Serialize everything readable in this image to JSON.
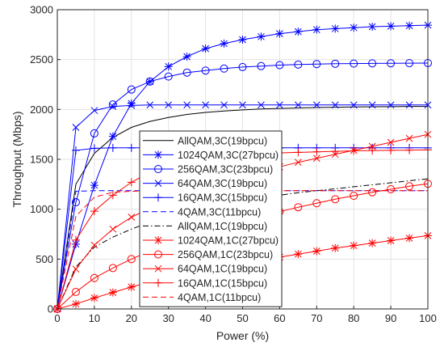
{
  "chart_data": {
    "type": "line",
    "xlabel": "Power (%)",
    "ylabel": "Throughput (Mbps)",
    "xlim": [
      0,
      100
    ],
    "ylim": [
      0,
      3000
    ],
    "xticks": [
      0,
      10,
      20,
      30,
      40,
      50,
      60,
      70,
      80,
      90,
      100
    ],
    "yticks": [
      0,
      500,
      1000,
      1500,
      2000,
      2500,
      3000
    ],
    "grid": true,
    "legend_position": "center",
    "series": [
      {
        "name": "AllQAM,3C(19bpcu)",
        "color": "#000000",
        "dash": "solid",
        "marker": "none",
        "x": [
          0,
          5,
          10,
          15,
          20,
          25,
          30,
          35,
          40,
          45,
          50,
          55,
          60,
          65,
          70,
          75,
          80,
          85,
          90,
          95,
          100
        ],
        "y": [
          0,
          1250,
          1560,
          1720,
          1820,
          1880,
          1920,
          1950,
          1970,
          1985,
          1995,
          2005,
          2010,
          2015,
          2020,
          2022,
          2025,
          2027,
          2028,
          2030,
          2030
        ]
      },
      {
        "name": "1024QAM,3C(27bpcu)",
        "color": "#0000ff",
        "dash": "solid",
        "marker": "star",
        "x": [
          0,
          5,
          10,
          15,
          20,
          25,
          30,
          35,
          40,
          45,
          50,
          55,
          60,
          65,
          70,
          75,
          80,
          85,
          90,
          95,
          100
        ],
        "y": [
          0,
          650,
          1240,
          1730,
          2060,
          2280,
          2430,
          2530,
          2610,
          2660,
          2700,
          2730,
          2760,
          2780,
          2800,
          2810,
          2820,
          2830,
          2835,
          2840,
          2845
        ]
      },
      {
        "name": "256QAM,3C(23bpcu)",
        "color": "#0000ff",
        "dash": "solid",
        "marker": "circle",
        "x": [
          0,
          5,
          10,
          15,
          20,
          25,
          30,
          35,
          40,
          45,
          50,
          55,
          60,
          65,
          70,
          75,
          80,
          85,
          90,
          95,
          100
        ],
        "y": [
          0,
          1070,
          1760,
          2050,
          2200,
          2280,
          2330,
          2370,
          2390,
          2410,
          2425,
          2435,
          2445,
          2450,
          2455,
          2458,
          2460,
          2462,
          2463,
          2464,
          2465
        ]
      },
      {
        "name": "64QAM,3C(19bpcu)",
        "color": "#0000ff",
        "dash": "solid",
        "marker": "x",
        "x": [
          0,
          5,
          10,
          15,
          20,
          25,
          30,
          35,
          40,
          45,
          50,
          55,
          60,
          65,
          70,
          75,
          80,
          85,
          90,
          95,
          100
        ],
        "y": [
          0,
          1820,
          1990,
          2030,
          2040,
          2045,
          2045,
          2045,
          2045,
          2045,
          2045,
          2045,
          2045,
          2045,
          2045,
          2045,
          2045,
          2045,
          2045,
          2045,
          2045
        ]
      },
      {
        "name": "16QAM,3C(15bpcu)",
        "color": "#0000ff",
        "dash": "solid",
        "marker": "plus",
        "x": [
          0,
          5,
          10,
          15,
          20,
          25,
          30,
          35,
          40,
          45,
          50,
          55,
          60,
          65,
          70,
          75,
          80,
          85,
          90,
          95,
          100
        ],
        "y": [
          0,
          1590,
          1610,
          1615,
          1615,
          1615,
          1615,
          1615,
          1615,
          1615,
          1615,
          1615,
          1615,
          1615,
          1615,
          1615,
          1615,
          1615,
          1615,
          1615,
          1615
        ]
      },
      {
        "name": "4QAM,3C(11bpcu)",
        "color": "#0000ff",
        "dash": "dashed",
        "marker": "none",
        "x": [
          0,
          5,
          10,
          15,
          20,
          25,
          30,
          35,
          40,
          45,
          50,
          55,
          60,
          65,
          70,
          75,
          80,
          85,
          90,
          95,
          100
        ],
        "y": [
          0,
          1180,
          1185,
          1185,
          1185,
          1185,
          1185,
          1185,
          1185,
          1185,
          1185,
          1185,
          1185,
          1185,
          1185,
          1185,
          1185,
          1185,
          1185,
          1185,
          1185
        ]
      },
      {
        "name": "AllQAM,1C(19bpcu)",
        "color": "#000000",
        "dash": "dashdot",
        "marker": "none",
        "x": [
          0,
          5,
          10,
          15,
          20,
          25,
          30,
          35,
          40,
          45,
          50,
          55,
          60,
          65,
          70,
          75,
          80,
          85,
          90,
          95,
          100
        ],
        "y": [
          0,
          420,
          620,
          720,
          800,
          870,
          930,
          980,
          1020,
          1060,
          1090,
          1120,
          1140,
          1165,
          1185,
          1205,
          1225,
          1245,
          1265,
          1285,
          1305
        ]
      },
      {
        "name": "1024QAM,1C(27bpcu)",
        "color": "#ff0000",
        "dash": "solid",
        "marker": "star",
        "x": [
          0,
          5,
          10,
          15,
          20,
          25,
          30,
          35,
          40,
          45,
          50,
          55,
          60,
          65,
          70,
          75,
          80,
          85,
          90,
          95,
          100
        ],
        "y": [
          0,
          50,
          110,
          165,
          220,
          270,
          315,
          355,
          390,
          425,
          460,
          490,
          520,
          550,
          580,
          610,
          635,
          660,
          685,
          710,
          735
        ]
      },
      {
        "name": "256QAM,1C(23bpcu)",
        "color": "#ff0000",
        "dash": "solid",
        "marker": "circle",
        "x": [
          0,
          5,
          10,
          15,
          20,
          25,
          30,
          35,
          40,
          45,
          50,
          55,
          60,
          65,
          70,
          75,
          80,
          85,
          90,
          95,
          100
        ],
        "y": [
          0,
          170,
          310,
          410,
          500,
          580,
          650,
          710,
          770,
          830,
          880,
          930,
          975,
          1020,
          1060,
          1100,
          1135,
          1170,
          1200,
          1230,
          1255
        ]
      },
      {
        "name": "64QAM,1C(19bpcu)",
        "color": "#ff0000",
        "dash": "solid",
        "marker": "x",
        "x": [
          0,
          5,
          10,
          15,
          20,
          25,
          30,
          35,
          40,
          45,
          50,
          55,
          60,
          65,
          70,
          75,
          80,
          85,
          90,
          95,
          100
        ],
        "y": [
          0,
          400,
          640,
          800,
          920,
          1010,
          1090,
          1160,
          1220,
          1280,
          1330,
          1380,
          1425,
          1470,
          1510,
          1550,
          1590,
          1630,
          1670,
          1710,
          1750
        ]
      },
      {
        "name": "16QAM,1C(15bpcu)",
        "color": "#ff0000",
        "dash": "solid",
        "marker": "plus",
        "x": [
          0,
          5,
          10,
          15,
          20,
          25,
          30,
          35,
          40,
          45,
          50,
          55,
          60,
          65,
          70,
          75,
          80,
          85,
          90,
          95,
          100
        ],
        "y": [
          0,
          690,
          980,
          1140,
          1270,
          1370,
          1440,
          1480,
          1510,
          1530,
          1545,
          1555,
          1565,
          1570,
          1575,
          1580,
          1585,
          1588,
          1590,
          1592,
          1595
        ]
      },
      {
        "name": "4QAM,1C(11bpcu)",
        "color": "#ff0000",
        "dash": "dashed",
        "marker": "none",
        "x": [
          0,
          5,
          10,
          15,
          20,
          25,
          30,
          35,
          40,
          45,
          50,
          55,
          60,
          65,
          70,
          75,
          80,
          85,
          90,
          95,
          100
        ],
        "y": [
          0,
          930,
          1120,
          1170,
          1180,
          1185,
          1185,
          1185,
          1185,
          1185,
          1185,
          1185,
          1185,
          1185,
          1185,
          1185,
          1185,
          1185,
          1185,
          1185,
          1185
        ]
      }
    ]
  }
}
